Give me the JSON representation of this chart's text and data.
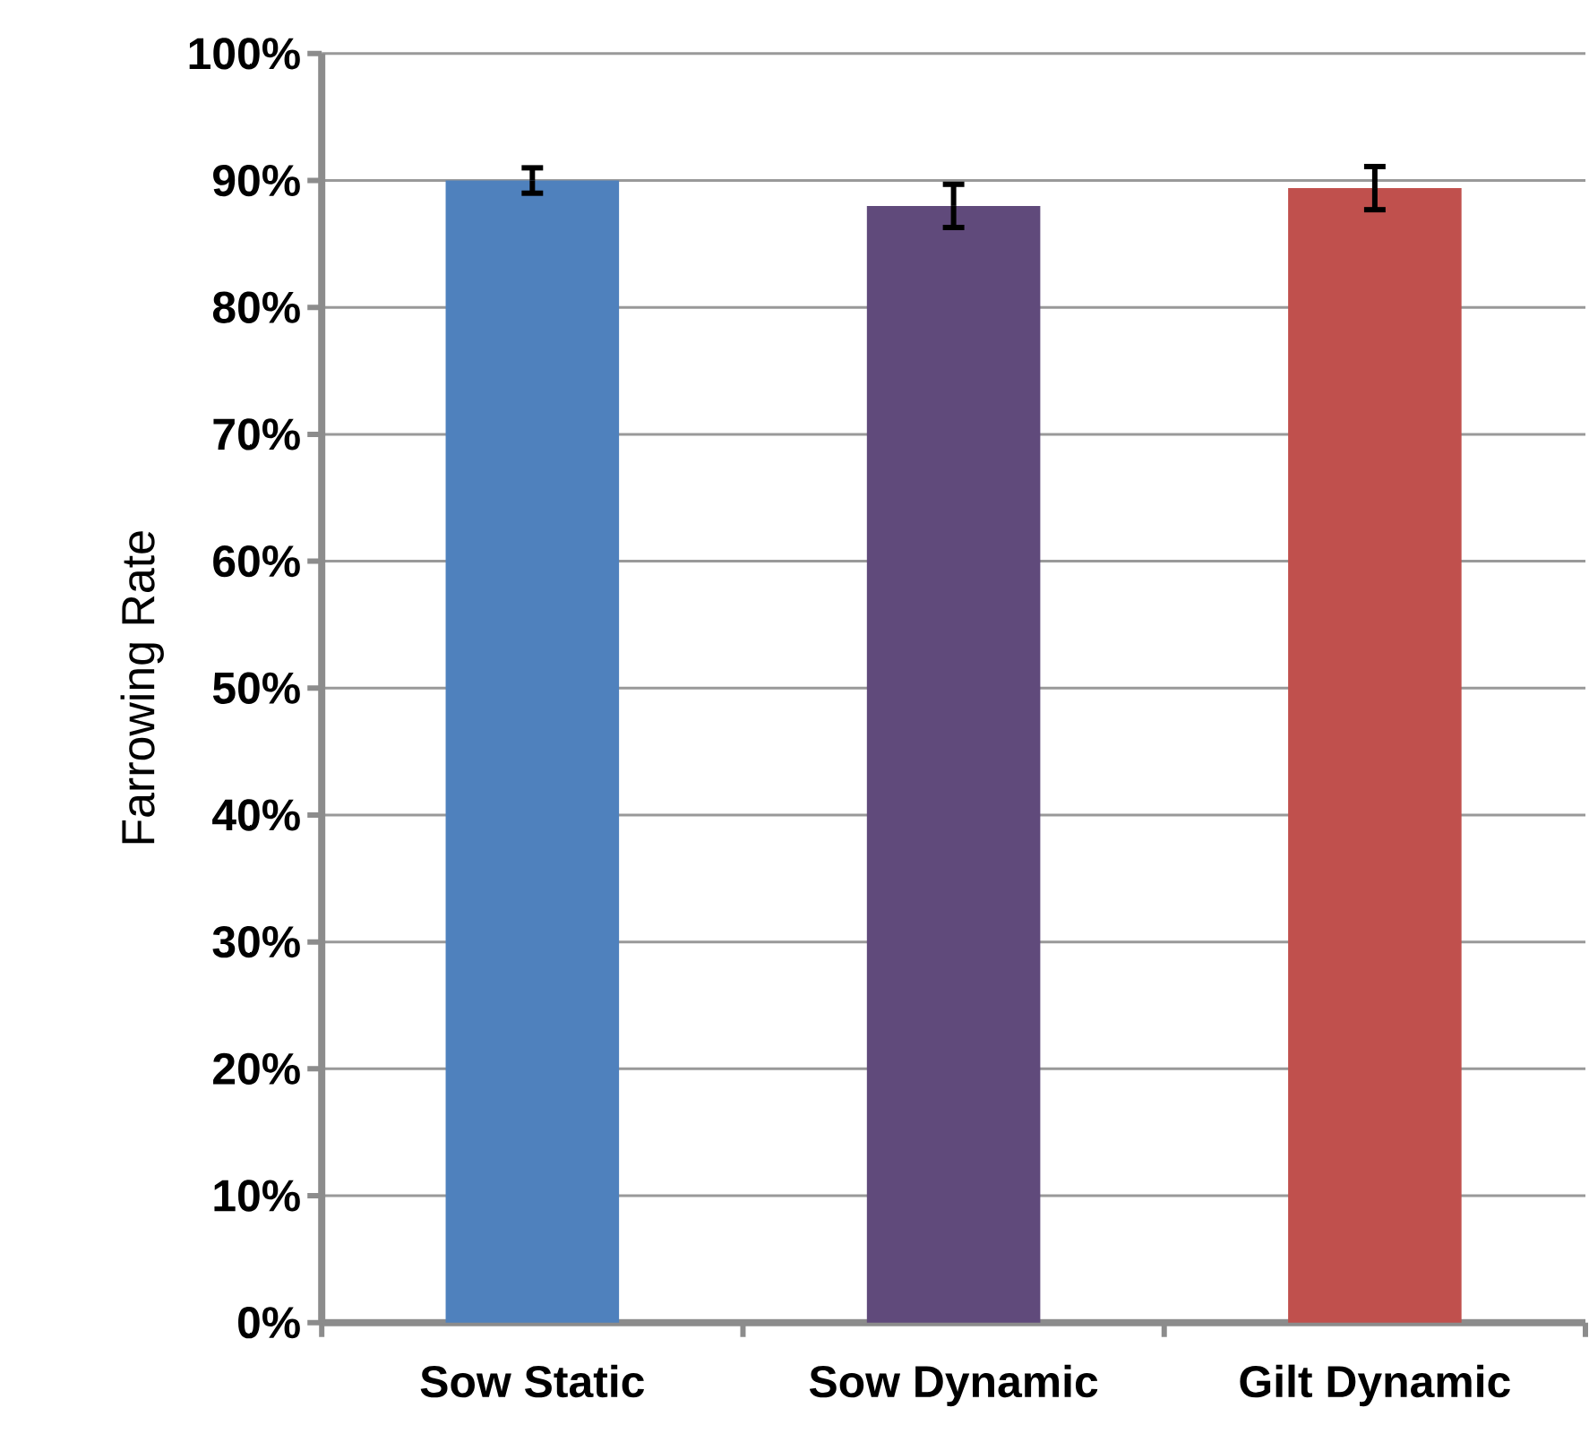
{
  "chart_data": {
    "type": "bar",
    "ylabel": "Farrowing Rate",
    "categories": [
      "Sow Static",
      "Sow Dynamic",
      "Gilt Dynamic"
    ],
    "values": [
      90.0,
      88.0,
      89.4
    ],
    "errors": [
      1.0,
      1.7,
      1.7
    ],
    "colors": [
      "#4f81bd",
      "#604a7b",
      "#c0504d"
    ],
    "ylim": [
      0,
      100
    ],
    "yticks": [
      {
        "value": 0,
        "label": "0%"
      },
      {
        "value": 10,
        "label": "10%"
      },
      {
        "value": 20,
        "label": "20%"
      },
      {
        "value": 30,
        "label": "30%"
      },
      {
        "value": 40,
        "label": "40%"
      },
      {
        "value": 50,
        "label": "50%"
      },
      {
        "value": 60,
        "label": "60%"
      },
      {
        "value": 70,
        "label": "70%"
      },
      {
        "value": 80,
        "label": "80%"
      },
      {
        "value": 90,
        "label": "90%"
      },
      {
        "value": 100,
        "label": "100%"
      }
    ],
    "grid": "y"
  }
}
